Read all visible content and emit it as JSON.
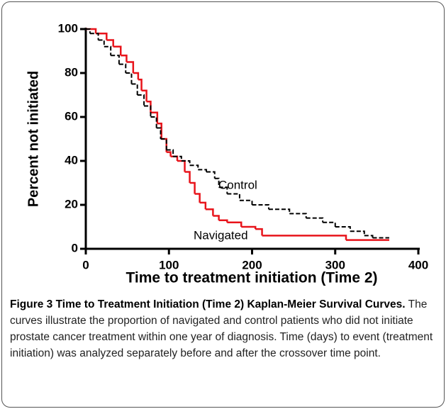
{
  "chart_data": {
    "type": "step",
    "xlabel": "Time to treatment initiation (Time 2)",
    "ylabel": "Percent not initiated",
    "xlim": [
      0,
      400
    ],
    "xticks": [
      0,
      100,
      200,
      300,
      400
    ],
    "ylim": [
      0,
      100
    ],
    "yticks": [
      0,
      20,
      40,
      60,
      80,
      100
    ],
    "series": [
      {
        "name": "Navigated",
        "color": "#e8141b",
        "dash": false,
        "x": [
          0,
          12,
          25,
          33,
          42,
          49,
          57,
          63,
          67,
          73,
          78,
          86,
          91,
          97,
          102,
          110,
          119,
          125,
          131,
          137,
          144,
          153,
          160,
          170,
          187,
          204,
          212,
          313,
          365
        ],
        "values": [
          100,
          98,
          95,
          92,
          88,
          85,
          80,
          77,
          72,
          67,
          62,
          57,
          50,
          44,
          42,
          40,
          35,
          30,
          25,
          21,
          18,
          15,
          13,
          12,
          10,
          9,
          6,
          4,
          4
        ]
      },
      {
        "name": "Control",
        "color": "#000000",
        "dash": true,
        "x": [
          0,
          5,
          15,
          22,
          30,
          40,
          48,
          55,
          62,
          70,
          78,
          85,
          90,
          97,
          105,
          115,
          125,
          135,
          145,
          155,
          160,
          170,
          185,
          200,
          220,
          245,
          265,
          285,
          300,
          318,
          335,
          345,
          365
        ],
        "values": [
          100,
          98,
          95,
          92,
          88,
          84,
          80,
          75,
          70,
          65,
          60,
          55,
          50,
          45,
          42,
          40,
          38,
          36,
          35,
          32,
          28,
          25,
          22,
          20,
          18,
          16,
          14,
          12,
          10,
          8,
          6,
          5,
          5
        ]
      }
    ]
  },
  "caption": {
    "title": "Figure 3 Time to Treatment Initiation (Time 2) Kaplan-Meier Survival Curves.",
    "text": "The curves illustrate the proportion of navigated and control patients who did not initiate prostate cancer treatment within one year of diagnosis. Time (days) to event (treatment initiation) was analyzed separately before and after the crossover time point."
  }
}
